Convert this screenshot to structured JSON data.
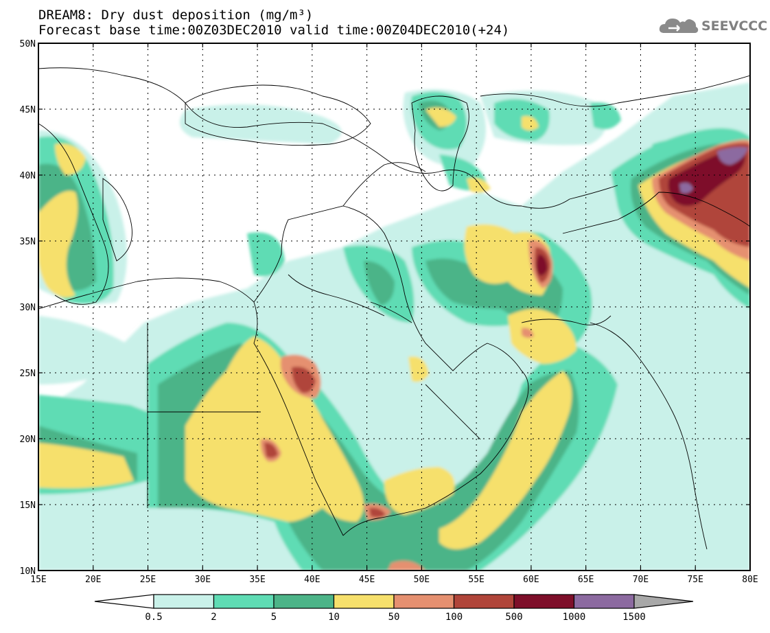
{
  "title_line1": "DREAM8: Dry dust deposition (mg/m³)",
  "title_line2": "Forecast base time:00Z03DEC2010 valid time:00Z04DEC2010(+24)",
  "logo": "SEEVCCC",
  "map": {
    "lon_labels": [
      "15E",
      "20E",
      "25E",
      "30E",
      "35E",
      "40E",
      "45E",
      "50E",
      "55E",
      "60E",
      "65E",
      "70E",
      "75E",
      "80E"
    ],
    "lat_labels": [
      "50N",
      "45N",
      "40N",
      "35N",
      "30N",
      "25N",
      "20N",
      "15N",
      "10N"
    ]
  },
  "legend": {
    "colors": [
      "#ffffff",
      "#c9f1e9",
      "#5fdcb4",
      "#4cb488",
      "#f6e06c",
      "#e59070",
      "#b0453a",
      "#7e0f2a",
      "#8c6aa0",
      "#a8a8a8"
    ],
    "labels": [
      "0.5",
      "2",
      "5",
      "10",
      "50",
      "100",
      "500",
      "1000",
      "1500"
    ]
  }
}
